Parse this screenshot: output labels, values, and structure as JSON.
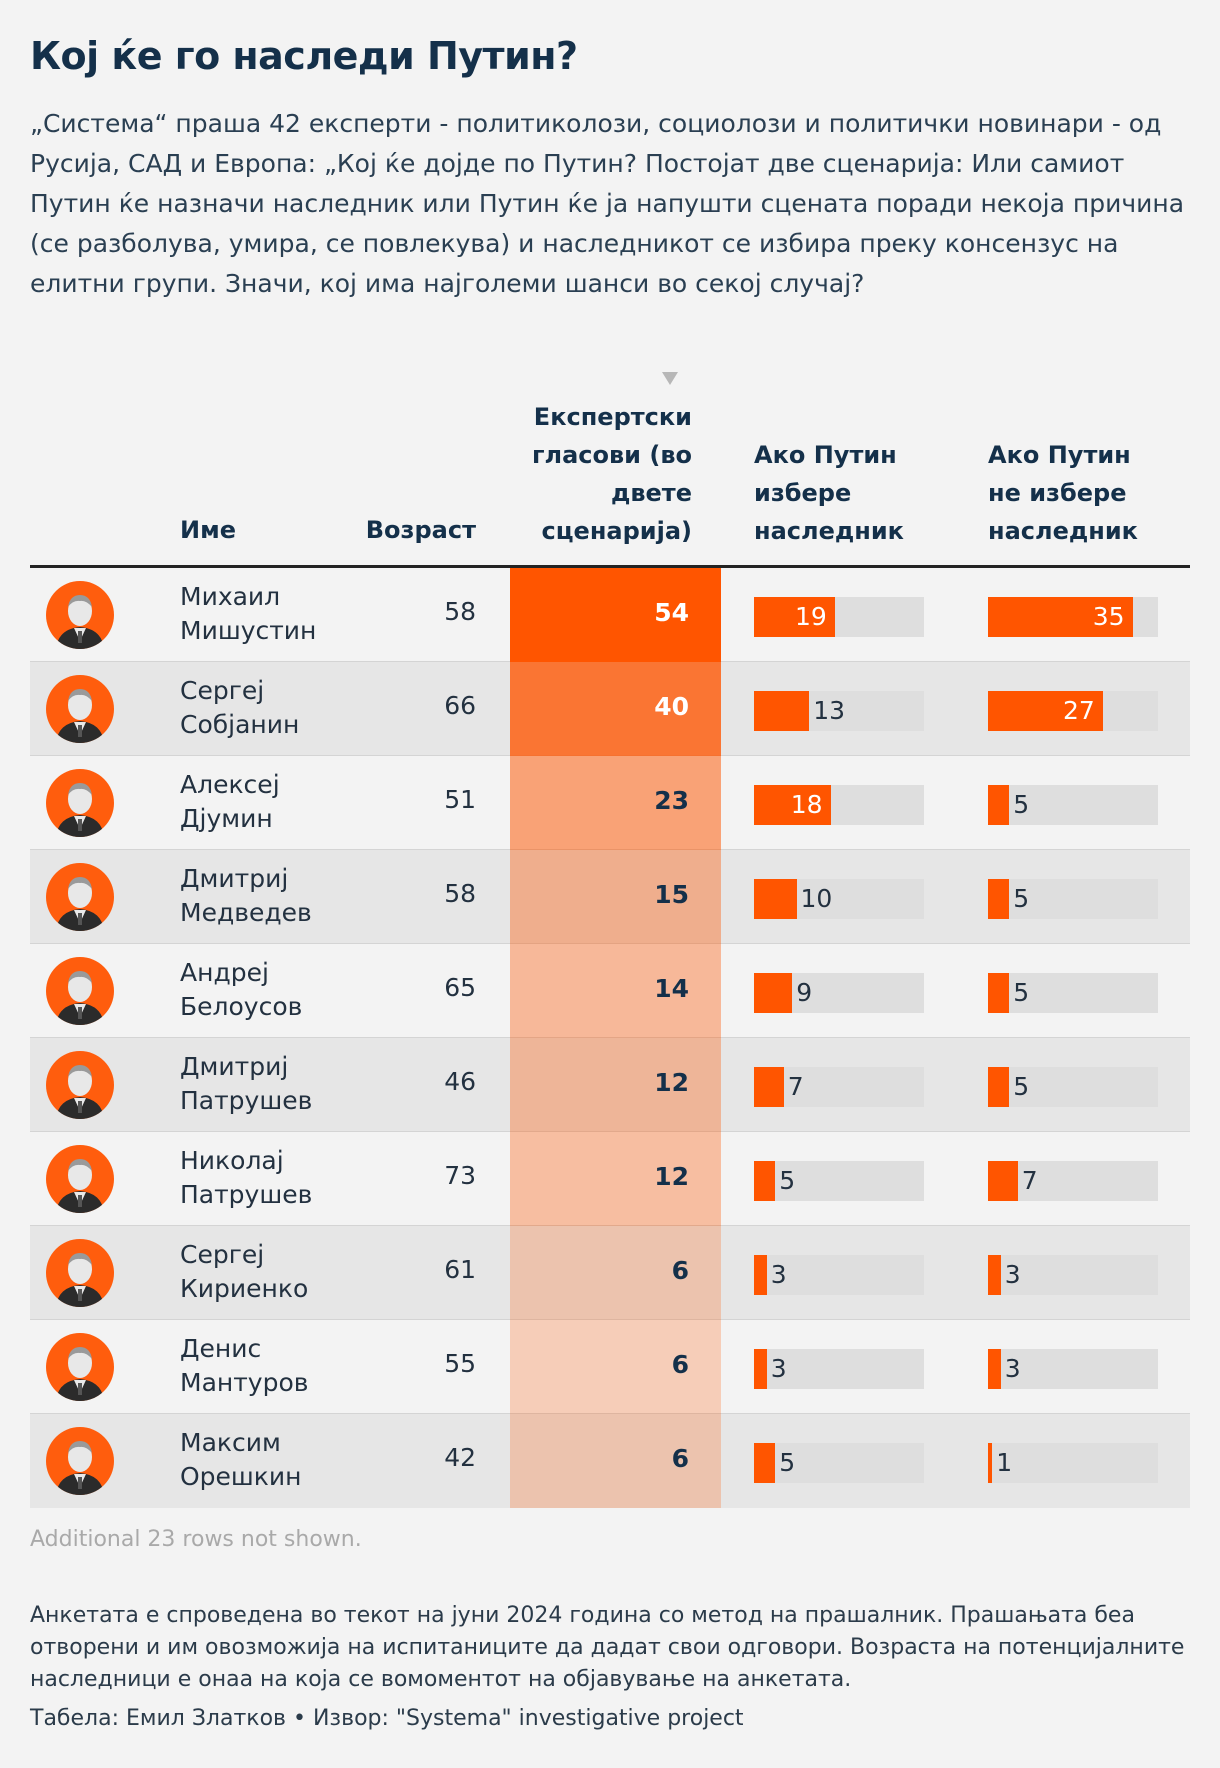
{
  "title": "Кој ќе го наследи Путин?",
  "subtitle": "„Система“ праша 42 експерти - политиколози, социолози и политички новинари - од Русија, САД и Европа: „Кој ќе дојде по Путин? Постојат две сценарија: Или самиот Путин ќе назначи наследник или Путин ќе ја напушти сцената поради некоја причина (се разболува, умира, се повлекува) и наследникот се избира преку консензус на елитни групи. Значи, кој има најголеми шанси во секој случај?",
  "headers": {
    "name": "Име",
    "age": "Возраст",
    "votes": "Експертски гласови (во двете сценарија)",
    "chosen": "Ако Путин избере наследник",
    "not_chosen": "Ако Путин не избере наследник"
  },
  "colors": {
    "accent": "#ff5500",
    "track": "#dedede"
  },
  "chart_data": {
    "type": "table",
    "columns": [
      "Име",
      "Возраст",
      "Експертски гласови (во двете сценарија)",
      "Ако Путин избере наследник",
      "Ако Путин не избере наследник"
    ],
    "bar_max": 40,
    "rows": [
      {
        "name": "Михаил Мишустин",
        "age": 58,
        "votes": 54,
        "chosen": 19,
        "not_chosen": 35
      },
      {
        "name": "Сергеј Собјанин",
        "age": 66,
        "votes": 40,
        "chosen": 13,
        "not_chosen": 27
      },
      {
        "name": "Алексеј Дјумин",
        "age": 51,
        "votes": 23,
        "chosen": 18,
        "not_chosen": 5
      },
      {
        "name": "Дмитриј Медведев",
        "age": 58,
        "votes": 15,
        "chosen": 10,
        "not_chosen": 5
      },
      {
        "name": "Андреј Белоусов",
        "age": 65,
        "votes": 14,
        "chosen": 9,
        "not_chosen": 5
      },
      {
        "name": "Дмитриј Патрушев",
        "age": 46,
        "votes": 12,
        "chosen": 7,
        "not_chosen": 5
      },
      {
        "name": "Николај Патрушев",
        "age": 73,
        "votes": 12,
        "chosen": 5,
        "not_chosen": 7
      },
      {
        "name": "Сергеј Кириенко",
        "age": 61,
        "votes": 6,
        "chosen": 3,
        "not_chosen": 3
      },
      {
        "name": "Денис Мантуров",
        "age": 55,
        "votes": 6,
        "chosen": 3,
        "not_chosen": 3
      },
      {
        "name": "Максим Орешкин",
        "age": 42,
        "votes": 6,
        "chosen": 5,
        "not_chosen": 1
      }
    ]
  },
  "note": "Additional 23 rows not shown.",
  "footnote": "Анкетата е спроведена во текот на јуни 2024 година со метод на прашалник. Прашањата беа отворени и им овозможија на испитаниците да дадат свои одговори. Возраста на потенцијалните наследници е онаа на која се вомоментот на објавување на анкетата.",
  "credit": "Табела: Емил Златков • Извор: \"Systema\" investigative project"
}
